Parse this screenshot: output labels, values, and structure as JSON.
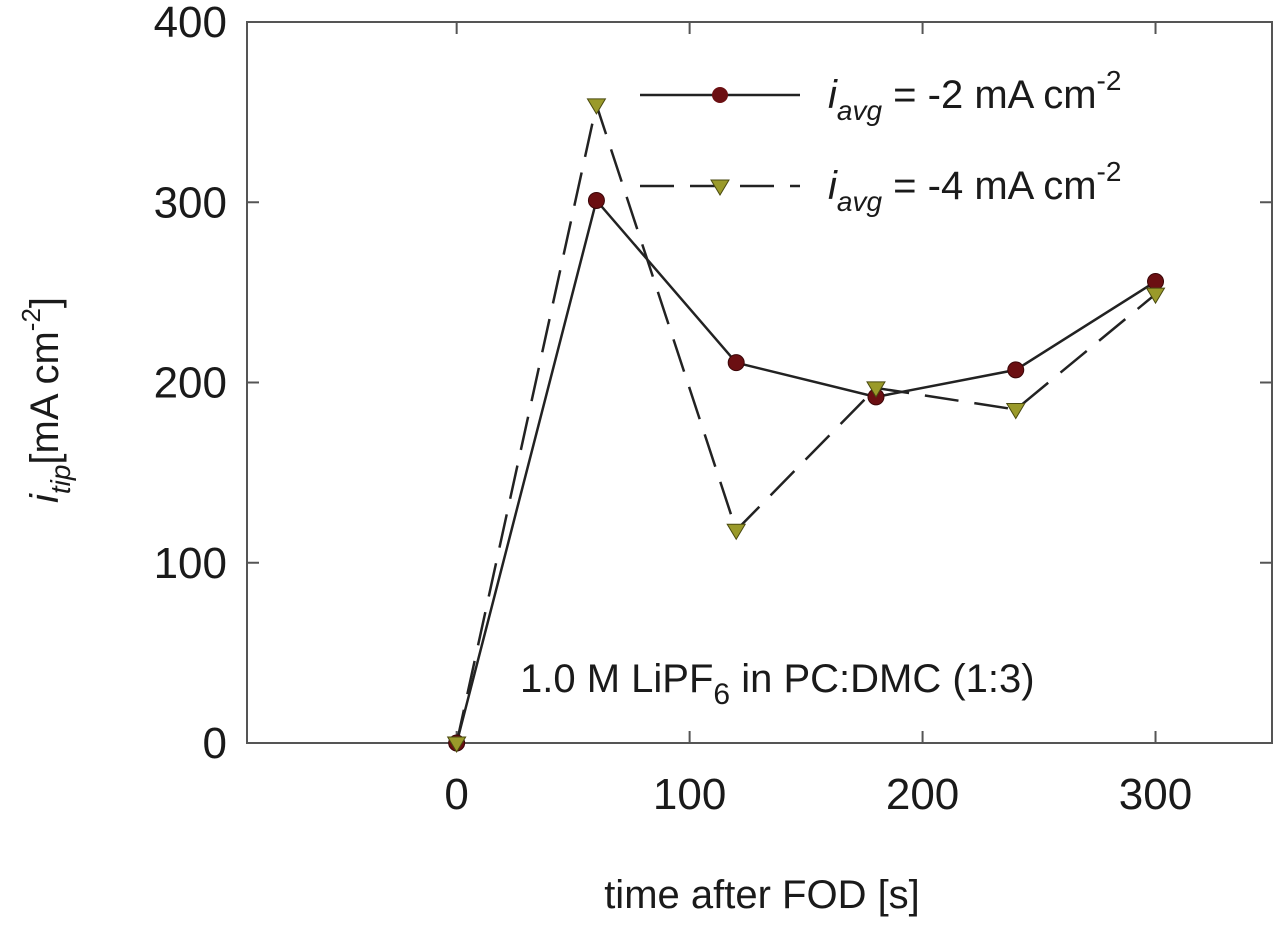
{
  "chart_data": {
    "type": "line",
    "xlabel": "time after FOD [s]",
    "ylabel": {
      "main": "i",
      "sub": "tip",
      "rest": "[mA cm",
      "sup": "-2",
      "close": "]"
    },
    "xlim": [
      -90,
      350
    ],
    "ylim": [
      0,
      400
    ],
    "xticks": [
      0,
      100,
      200,
      300
    ],
    "yticks": [
      0,
      100,
      200,
      300,
      400
    ],
    "grid": false,
    "legend_position": "top-right",
    "annotation": {
      "text": "1.0 M LiPF",
      "sub": "6",
      "rest": " in PC:DMC (1:3)"
    },
    "series": [
      {
        "name": {
          "main": "i",
          "sub": "avg",
          "rest": " = -2 mA cm",
          "sup": "-2"
        },
        "x": [
          0,
          60,
          120,
          180,
          240,
          300
        ],
        "y": [
          0,
          301,
          211,
          192,
          207,
          256
        ],
        "line": "solid",
        "marker": "circle",
        "color": "#6b0f12",
        "line_color": "#222222"
      },
      {
        "name": {
          "main": "i",
          "sub": "avg",
          "rest": " = -4 mA cm",
          "sup": "-2"
        },
        "x": [
          0,
          60,
          120,
          180,
          240,
          300
        ],
        "y": [
          0,
          354,
          118,
          197,
          185,
          249
        ],
        "line": "dashed",
        "marker": "triangle-down",
        "color": "#9a9a2a",
        "line_color": "#222222"
      }
    ]
  }
}
